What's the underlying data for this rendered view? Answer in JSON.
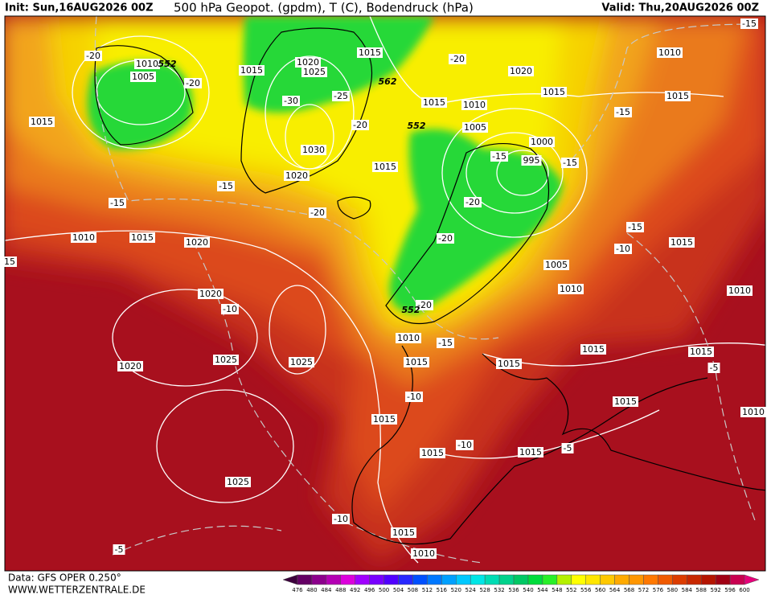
{
  "header": {
    "init": "Init: Sun,16AUG2026 00Z",
    "title": "500 hPa Geopot. (gpdm), T (C), Bodendruck (hPa)",
    "valid": "Valid: Thu,20AUG2026 00Z"
  },
  "map": {
    "pressure_labels": [
      1010,
      1005,
      1015,
      1020,
      1025,
      1015,
      1015,
      1010,
      1020,
      1015,
      1015,
      1010,
      1015,
      1005,
      1000,
      995,
      1030,
      1020,
      1015,
      1010,
      1015,
      1020,
      1015,
      1005,
      1010,
      1010,
      1020,
      1010,
      1015,
      1015,
      1020,
      1025,
      1025,
      1015,
      1015,
      1015,
      1010,
      1015,
      1015,
      1015,
      1025,
      1015,
      1010,
      15
    ],
    "temperature_labels": [
      -20,
      -20,
      -30,
      -25,
      -20,
      -20,
      -15,
      -15,
      -15,
      -15,
      -15,
      -15,
      -20,
      -20,
      -20,
      -15,
      -10,
      -10,
      -20,
      -15,
      -5,
      -10,
      -10,
      -5,
      -10,
      -5
    ],
    "height_labels": [
      552,
      562,
      552,
      552
    ]
  },
  "footer": {
    "source": "Data: GFS OPER 0.250°",
    "website": "WWW.WETTERZENTRALE.DE"
  },
  "colorbar": {
    "labels": [
      476,
      480,
      484,
      488,
      492,
      496,
      500,
      504,
      508,
      512,
      516,
      520,
      524,
      528,
      532,
      536,
      540,
      544,
      548,
      552,
      556,
      560,
      564,
      568,
      572,
      576,
      580,
      584,
      588,
      592,
      596,
      600
    ],
    "colors": [
      "#3c003c",
      "#640064",
      "#8c008c",
      "#b400b4",
      "#dc00dc",
      "#a000ff",
      "#7800ff",
      "#5000ff",
      "#2828ff",
      "#0050ff",
      "#0078ff",
      "#00a0ff",
      "#00c8ff",
      "#00e6e6",
      "#00dcb4",
      "#00d28c",
      "#00c864",
      "#00dc3c",
      "#28f028",
      "#b4f000",
      "#ffff00",
      "#ffe600",
      "#ffc800",
      "#ffaa00",
      "#ff9600",
      "#ff7800",
      "#f05a00",
      "#dc3c00",
      "#c82800",
      "#b41400",
      "#a00014",
      "#c80050",
      "#e6007a"
    ]
  }
}
